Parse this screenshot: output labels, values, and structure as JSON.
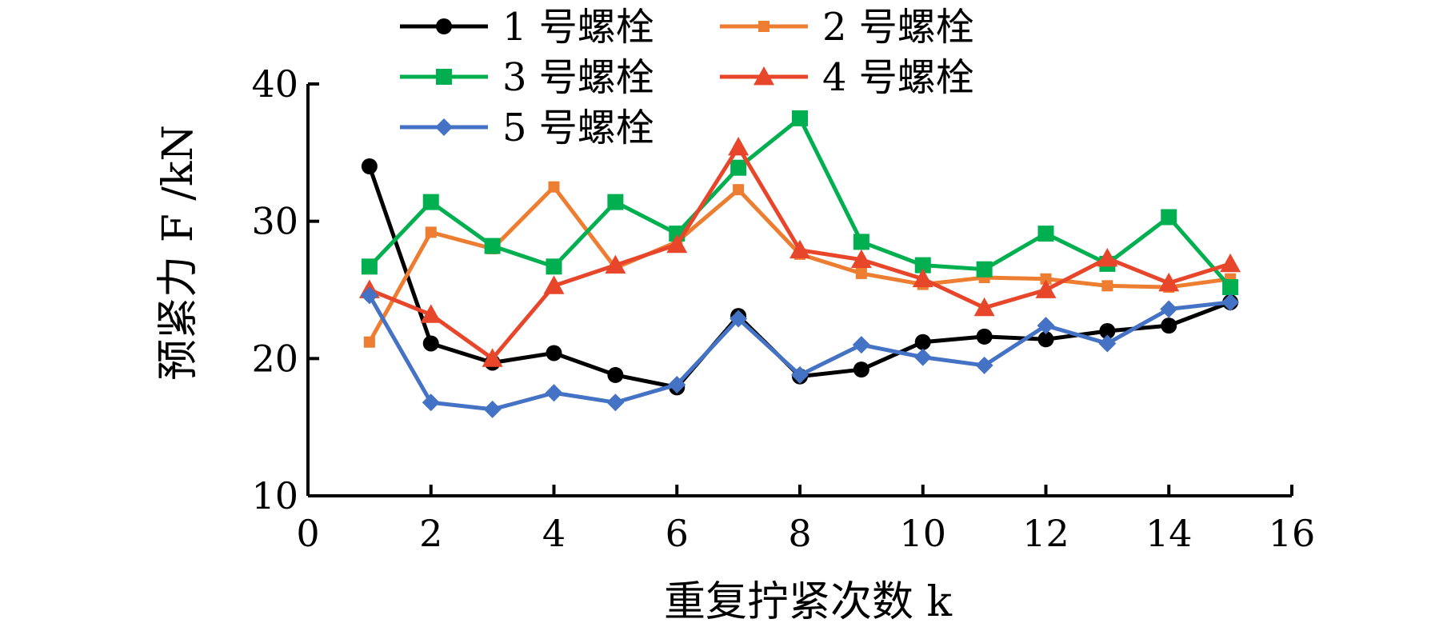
{
  "chart_data": {
    "type": "line",
    "title": "",
    "xlabel": "重复拧紧次数 k",
    "ylabel": "预紧力 F /kN",
    "xlim": [
      0,
      16
    ],
    "ylim": [
      10,
      40
    ],
    "xticks": [
      0,
      2,
      4,
      6,
      8,
      10,
      12,
      14,
      16
    ],
    "yticks": [
      10,
      20,
      30,
      40
    ],
    "grid": false,
    "legend_position": "top",
    "x": [
      1,
      2,
      3,
      4,
      5,
      6,
      7,
      8,
      9,
      10,
      11,
      12,
      13,
      14,
      15
    ],
    "series": [
      {
        "name": "1 号螺栓",
        "color": "#000000",
        "marker": "circle",
        "values": [
          34.0,
          21.1,
          19.7,
          20.4,
          18.8,
          17.9,
          23.1,
          18.7,
          19.2,
          21.2,
          21.6,
          21.4,
          22.0,
          22.4,
          24.1
        ]
      },
      {
        "name": "2 号螺栓",
        "color": "#ED7D31",
        "marker": "square",
        "values": [
          21.2,
          29.2,
          28.0,
          32.5,
          26.6,
          28.5,
          32.3,
          27.6,
          26.2,
          25.4,
          25.9,
          25.8,
          25.3,
          25.2,
          25.8
        ]
      },
      {
        "name": "3 号螺栓",
        "color": "#00B050",
        "marker": "square",
        "values": [
          26.7,
          31.4,
          28.2,
          26.7,
          31.4,
          29.1,
          33.9,
          37.5,
          28.5,
          26.8,
          26.5,
          29.1,
          26.9,
          30.3,
          25.2
        ]
      },
      {
        "name": "4 号螺栓",
        "color": "#E8462A",
        "marker": "triangle",
        "values": [
          25.0,
          23.2,
          20.0,
          25.3,
          26.8,
          28.3,
          35.4,
          27.9,
          27.2,
          25.8,
          23.7,
          25.0,
          27.3,
          25.5,
          26.9
        ]
      },
      {
        "name": "5 号螺栓",
        "color": "#4472C4",
        "marker": "diamond",
        "values": [
          24.6,
          16.8,
          16.3,
          17.5,
          16.8,
          18.1,
          22.9,
          18.8,
          21.0,
          20.1,
          19.5,
          22.4,
          21.1,
          23.6,
          24.1
        ]
      }
    ]
  }
}
